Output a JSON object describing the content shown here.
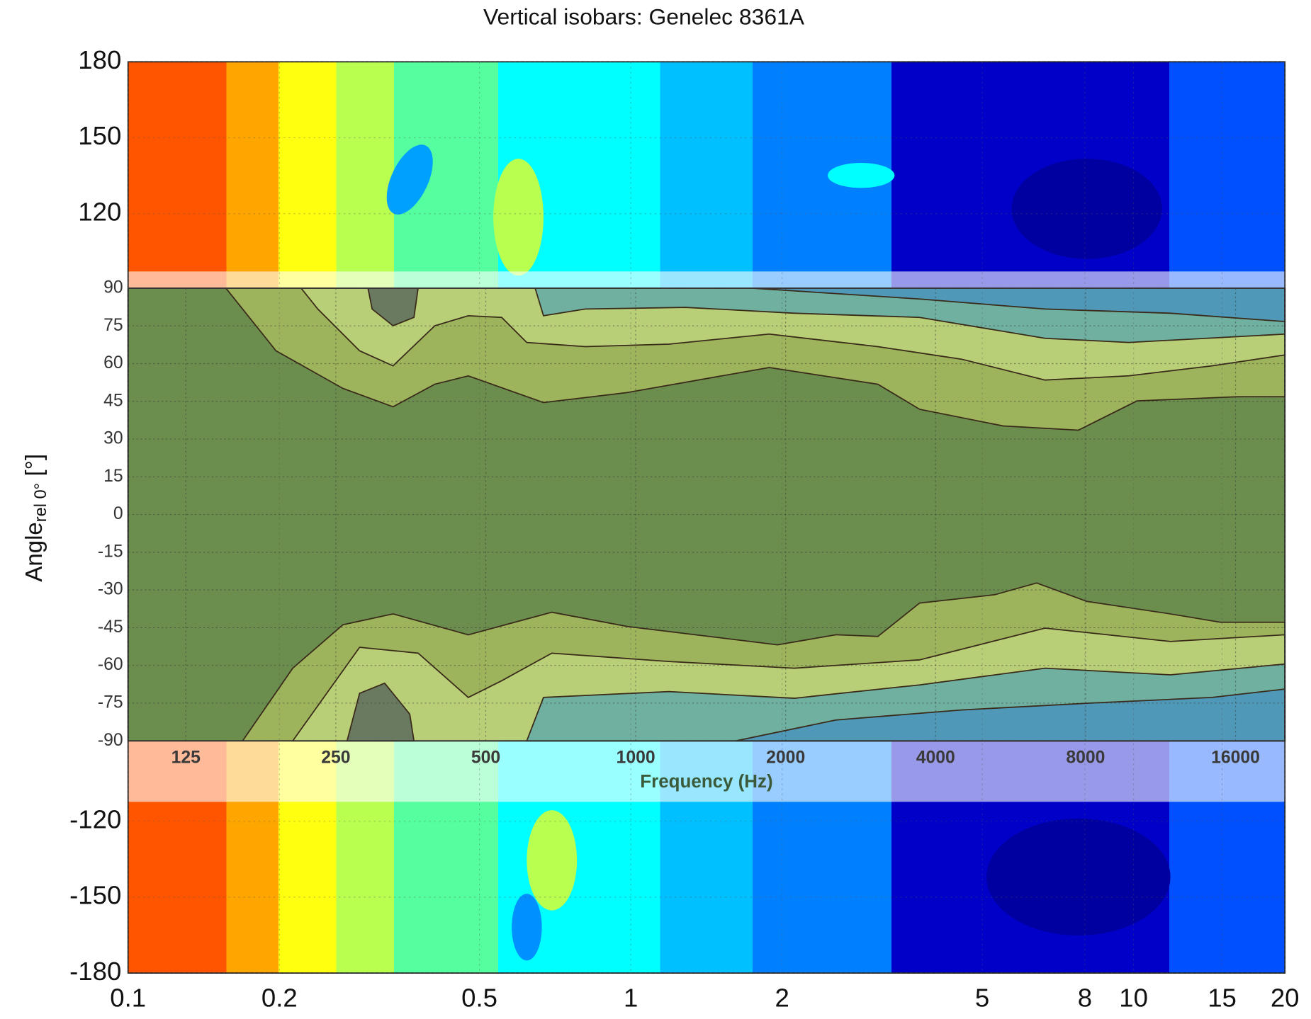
{
  "chart_data": {
    "type": "contour",
    "title": "Vertical isobars: Genelec  8361A",
    "log_x": true,
    "grid": true,
    "xlim": [
      0.1,
      20
    ],
    "xticks": [
      0.1,
      0.2,
      0.5,
      1,
      2,
      5,
      8,
      10,
      15,
      20
    ],
    "ylim": [
      -180,
      180
    ],
    "yticks": [
      -180,
      -150,
      -120,
      120,
      150,
      180
    ],
    "inset": {
      "log_x": true,
      "grid": true,
      "xlim": [
        95.7,
        20100
      ],
      "xticks": [
        125,
        250,
        500,
        1000,
        2000,
        4000,
        8000,
        16000
      ],
      "xlabel": "Frequency (Hz)",
      "ylim": [
        -90,
        90
      ],
      "yticks": [
        -90,
        -75,
        -60,
        -45,
        -30,
        -15,
        0,
        15,
        30,
        45,
        60,
        75,
        90
      ],
      "ylabel": {
        "main": "Angle",
        "sub": "rel 0°",
        "unit": "[°]"
      }
    }
  }
}
